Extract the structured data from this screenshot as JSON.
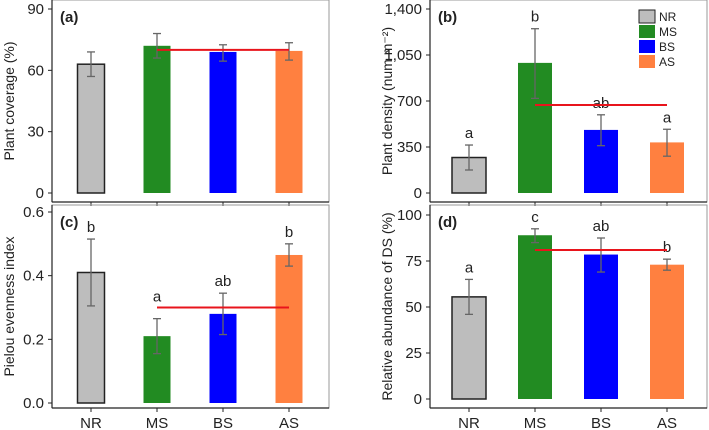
{
  "chart_data": [
    {
      "type": "bar",
      "panel_label": "(a)",
      "ylabel": "Plant coverage (%)",
      "ylim": [
        0,
        90
      ],
      "yticks": [
        "0",
        "30",
        "60",
        "90"
      ],
      "ytick_values": [
        0,
        30,
        60,
        90
      ],
      "categories": [
        "NR",
        "MS",
        "BS",
        "AS"
      ],
      "values": [
        63,
        72,
        69,
        69.5
      ],
      "err_low": [
        57,
        66,
        64.5,
        65
      ],
      "err_high": [
        69,
        78,
        72.5,
        73.5
      ],
      "letters": [
        "",
        "",
        "",
        ""
      ],
      "reference_line": {
        "value": 70,
        "from": "MS",
        "to": "AS"
      },
      "show_xlabels": false
    },
    {
      "type": "bar",
      "panel_label": "(b)",
      "ylabel": "Plant density (num m⁻²)",
      "ylim": [
        0,
        1400
      ],
      "yticks": [
        "0",
        "350",
        "700",
        "1,050",
        "1,400"
      ],
      "ytick_values": [
        0,
        350,
        700,
        1050,
        1400
      ],
      "categories": [
        "NR",
        "MS",
        "BS",
        "AS"
      ],
      "values": [
        270,
        990,
        480,
        385
      ],
      "err_low": [
        175,
        720,
        360,
        280
      ],
      "err_high": [
        365,
        1250,
        595,
        485
      ],
      "letters": [
        "a",
        "b",
        "ab",
        "a"
      ],
      "reference_line": {
        "value": 670,
        "from": "MS",
        "to": "AS"
      },
      "show_xlabels": false
    },
    {
      "type": "bar",
      "panel_label": "(c)",
      "ylabel": "Pielou evenness index",
      "ylim": [
        0,
        0.6
      ],
      "yticks": [
        "0.0",
        "0.2",
        "0.4",
        "0.6"
      ],
      "ytick_values": [
        0,
        0.2,
        0.4,
        0.6
      ],
      "categories": [
        "NR",
        "MS",
        "BS",
        "AS"
      ],
      "values": [
        0.41,
        0.21,
        0.28,
        0.465
      ],
      "err_low": [
        0.305,
        0.155,
        0.215,
        0.43
      ],
      "err_high": [
        0.515,
        0.265,
        0.345,
        0.5
      ],
      "letters": [
        "b",
        "a",
        "ab",
        "b"
      ],
      "reference_line": {
        "value": 0.3,
        "from": "MS",
        "to": "AS"
      },
      "show_xlabels": true
    },
    {
      "type": "bar",
      "panel_label": "(d)",
      "ylabel": "Relative abundance of  DS (%)",
      "ylim": [
        0,
        100
      ],
      "yticks": [
        "0",
        "25",
        "50",
        "75",
        "100"
      ],
      "ytick_values": [
        0,
        25,
        50,
        75,
        100
      ],
      "categories": [
        "NR",
        "MS",
        "BS",
        "AS"
      ],
      "values": [
        55.5,
        89,
        78.5,
        73
      ],
      "err_low": [
        46,
        85,
        69,
        70
      ],
      "err_high": [
        65,
        92.5,
        87.5,
        76
      ],
      "letters": [
        "a",
        "c",
        "ab",
        "b"
      ],
      "reference_line": {
        "value": 81,
        "from": "MS",
        "to": "AS"
      },
      "show_xlabels": true
    }
  ],
  "legend": {
    "placement": "top-right of panel (b)",
    "entries": [
      "NR",
      "MS",
      "BS",
      "AS"
    ]
  },
  "colors": {
    "NR": "#bdbdbd",
    "MS": "#228b22",
    "BS": "#0000ff",
    "AS": "#ff8040",
    "reference_line": "#e8141c",
    "error_bar": "#666666"
  }
}
